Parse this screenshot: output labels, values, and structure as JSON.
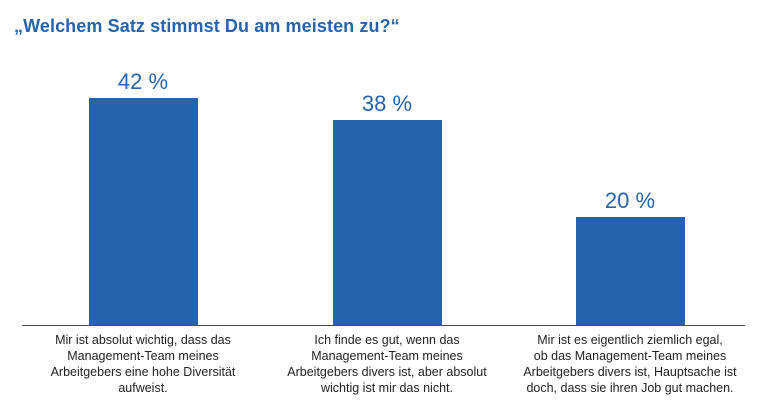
{
  "chart_data": {
    "type": "bar",
    "title": "„Welchem Satz stimmst Du am meisten zu?“",
    "value_suffix": " %",
    "ylim": [
      0,
      45
    ],
    "xlabel": "",
    "ylabel": "",
    "grid": false,
    "bar_color": "#2563ad",
    "categories": [
      [
        "Mir ist absolut wichtig, dass das",
        "Management-Team meines",
        "Arbeitgebers eine hohe Diversität",
        "aufweist."
      ],
      [
        "Ich finde es gut, wenn das",
        "Management-Team meines",
        "Arbeitgebers divers ist, aber absolut",
        "wichtig ist mir das nicht."
      ],
      [
        "Mir ist es eigentlich ziemlich egal,",
        "ob das Management-Team meines",
        "Arbeitgebers divers ist, Hauptsache ist",
        "doch, dass sie ihren Job gut machen."
      ]
    ],
    "values": [
      42,
      38,
      20
    ]
  }
}
